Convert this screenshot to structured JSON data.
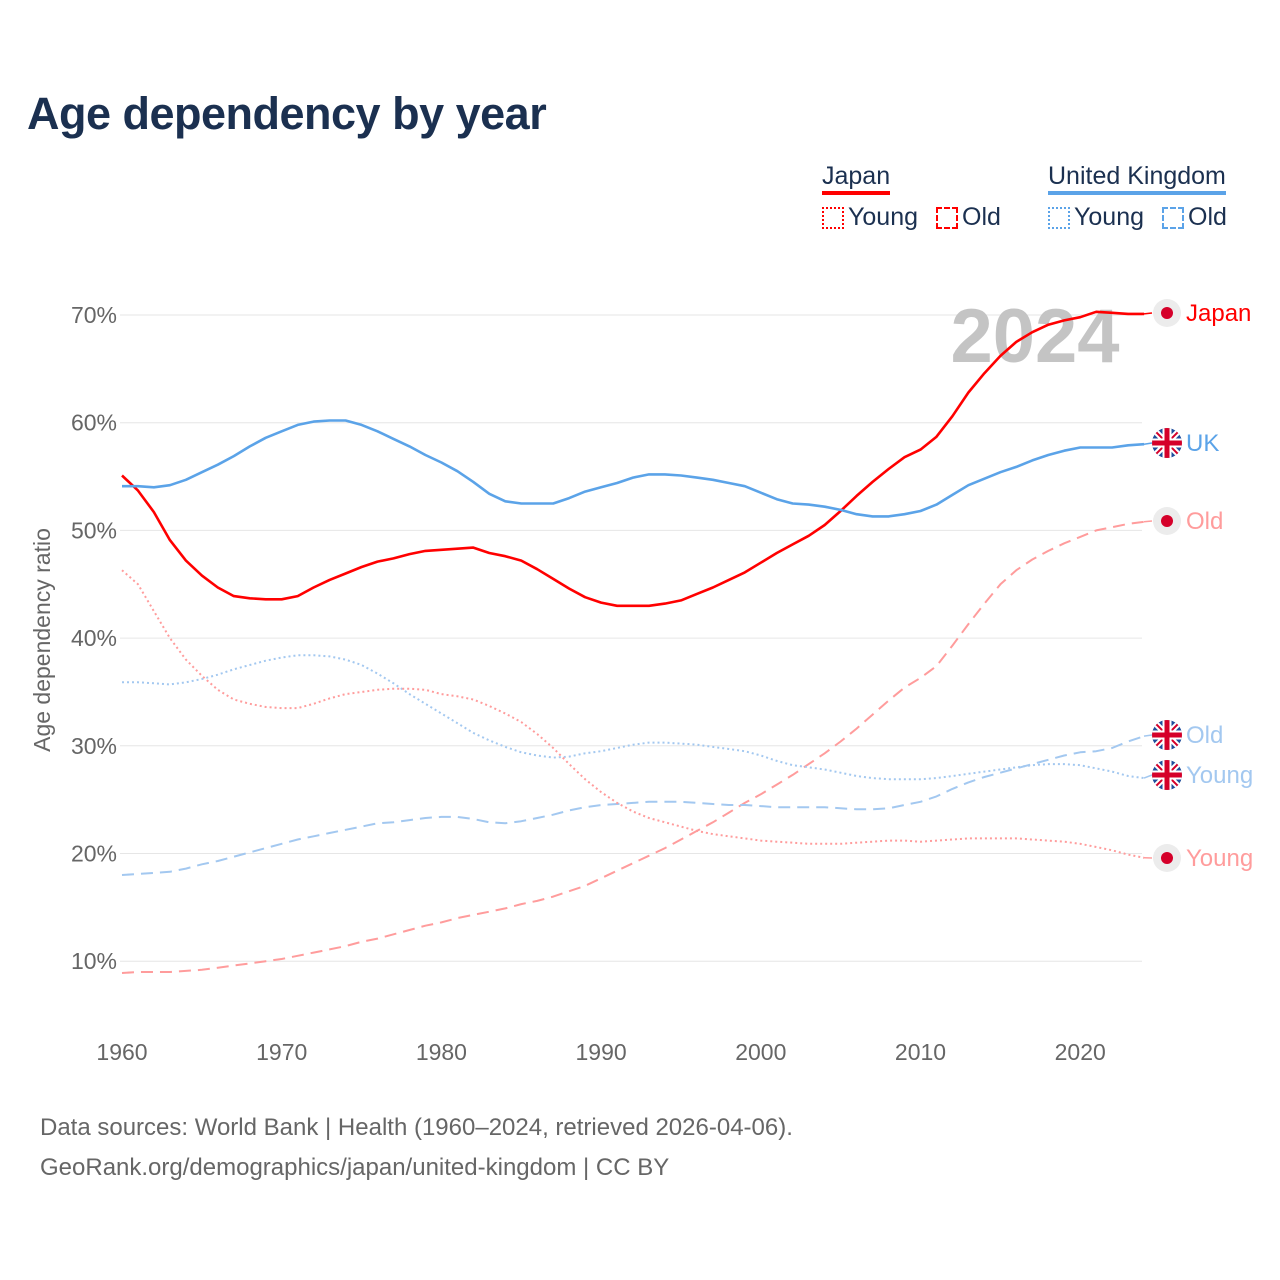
{
  "title": "Age dependency by year",
  "legend": {
    "groups": [
      {
        "country": "Japan",
        "color": "#ff0000",
        "items": [
          {
            "label": "Young",
            "style": "dotted"
          },
          {
            "label": "Old",
            "style": "dashed"
          }
        ]
      },
      {
        "country": "United Kingdom",
        "color": "#5ba3e8",
        "items": [
          {
            "label": "Young",
            "style": "dotted"
          },
          {
            "label": "Old",
            "style": "dashed"
          }
        ]
      }
    ]
  },
  "year_watermark": "2024",
  "footer": {
    "line1": "Data sources: World Bank | Health (1960–2024, retrieved 2026-04-06).",
    "line2": "GeoRank.org/demographics/japan/united-kingdom | CC BY"
  },
  "chart_data": {
    "type": "line",
    "title": "Age dependency by year",
    "xlabel": "",
    "ylabel": "Age dependency ratio",
    "xlim": [
      1960,
      2024
    ],
    "ylim": [
      5,
      72
    ],
    "grid": true,
    "x_ticks": [
      "1960",
      "1970",
      "1980",
      "1990",
      "2000",
      "2010",
      "2020"
    ],
    "y_ticks": [
      "10%",
      "20%",
      "30%",
      "40%",
      "50%",
      "60%",
      "70%"
    ],
    "x_start": 1960,
    "series": [
      {
        "name": "Japan",
        "end_label": "Japan",
        "flag": "japan",
        "color": "#ff0000",
        "dash": "solid",
        "values": [
          55.1,
          53.7,
          51.7,
          49.1,
          47.2,
          45.8,
          44.7,
          43.9,
          43.7,
          43.6,
          43.6,
          43.9,
          44.7,
          45.4,
          46.0,
          46.6,
          47.1,
          47.4,
          47.8,
          48.1,
          48.2,
          48.3,
          48.4,
          47.9,
          47.6,
          47.2,
          46.4,
          45.5,
          44.6,
          43.8,
          43.3,
          43.0,
          43.0,
          43.0,
          43.2,
          43.5,
          44.1,
          44.7,
          45.4,
          46.1,
          47.0,
          47.9,
          48.7,
          49.5,
          50.5,
          51.8,
          53.2,
          54.5,
          55.7,
          56.8,
          57.5,
          58.7,
          60.6,
          62.8,
          64.6,
          66.2,
          67.5,
          68.4,
          69.1,
          69.5,
          69.8,
          70.3,
          70.2,
          70.1,
          70.1
        ]
      },
      {
        "name": "United Kingdom",
        "end_label": "UK",
        "flag": "uk",
        "color": "#5ba3e8",
        "dash": "solid",
        "values": [
          54.1,
          54.1,
          54.0,
          54.2,
          54.7,
          55.4,
          56.1,
          56.9,
          57.8,
          58.6,
          59.2,
          59.8,
          60.1,
          60.2,
          60.2,
          59.8,
          59.2,
          58.5,
          57.8,
          57.0,
          56.3,
          55.5,
          54.5,
          53.4,
          52.7,
          52.5,
          52.5,
          52.5,
          53.0,
          53.6,
          54.0,
          54.4,
          54.9,
          55.2,
          55.2,
          55.1,
          54.9,
          54.7,
          54.4,
          54.1,
          53.5,
          52.9,
          52.5,
          52.4,
          52.2,
          51.9,
          51.5,
          51.3,
          51.3,
          51.5,
          51.8,
          52.4,
          53.3,
          54.2,
          54.8,
          55.4,
          55.9,
          56.5,
          57.0,
          57.4,
          57.7,
          57.7,
          57.7,
          57.9,
          58.0
        ]
      },
      {
        "name": "Japan Old",
        "end_label": "Old",
        "flag": "japan",
        "color": "#ff9c9c",
        "dash": "dashed",
        "values": [
          8.9,
          9.0,
          9.0,
          9.0,
          9.1,
          9.2,
          9.4,
          9.6,
          9.8,
          10.0,
          10.2,
          10.5,
          10.8,
          11.1,
          11.4,
          11.8,
          12.1,
          12.5,
          12.9,
          13.3,
          13.6,
          14.0,
          14.3,
          14.6,
          14.9,
          15.3,
          15.6,
          16.0,
          16.5,
          17.0,
          17.7,
          18.4,
          19.1,
          19.8,
          20.5,
          21.3,
          22.1,
          22.9,
          23.8,
          24.7,
          25.5,
          26.4,
          27.3,
          28.3,
          29.3,
          30.4,
          31.6,
          32.9,
          34.2,
          35.4,
          36.3,
          37.4,
          39.3,
          41.3,
          43.2,
          45.0,
          46.3,
          47.3,
          48.1,
          48.8,
          49.4,
          50.0,
          50.3,
          50.6,
          50.8
        ]
      },
      {
        "name": "United Kingdom Old",
        "end_label": "Old",
        "flag": "uk",
        "color": "#a3c8f0",
        "dash": "dashed",
        "values": [
          18.0,
          18.1,
          18.2,
          18.3,
          18.6,
          19.0,
          19.3,
          19.7,
          20.1,
          20.5,
          20.9,
          21.3,
          21.6,
          21.9,
          22.2,
          22.5,
          22.8,
          22.9,
          23.1,
          23.3,
          23.4,
          23.4,
          23.2,
          22.9,
          22.8,
          23.0,
          23.3,
          23.6,
          24.0,
          24.3,
          24.5,
          24.6,
          24.7,
          24.8,
          24.8,
          24.8,
          24.7,
          24.6,
          24.5,
          24.5,
          24.4,
          24.3,
          24.3,
          24.3,
          24.3,
          24.2,
          24.1,
          24.1,
          24.2,
          24.5,
          24.8,
          25.3,
          26.0,
          26.6,
          27.1,
          27.5,
          27.9,
          28.3,
          28.7,
          29.1,
          29.4,
          29.5,
          29.8,
          30.4,
          30.9
        ]
      },
      {
        "name": "United Kingdom Young",
        "end_label": "Young",
        "flag": "uk",
        "color": "#a3c8f0",
        "dash": "dotted",
        "values": [
          35.9,
          35.9,
          35.8,
          35.7,
          35.9,
          36.2,
          36.6,
          37.1,
          37.5,
          37.9,
          38.2,
          38.4,
          38.4,
          38.3,
          38.0,
          37.5,
          36.7,
          35.8,
          34.8,
          33.9,
          33.0,
          32.1,
          31.2,
          30.5,
          29.9,
          29.4,
          29.1,
          28.9,
          29.0,
          29.3,
          29.5,
          29.8,
          30.1,
          30.3,
          30.3,
          30.2,
          30.1,
          29.9,
          29.7,
          29.5,
          29.1,
          28.6,
          28.2,
          28.0,
          27.8,
          27.5,
          27.2,
          27.0,
          26.9,
          26.9,
          26.9,
          27.0,
          27.2,
          27.4,
          27.6,
          27.8,
          28.0,
          28.2,
          28.3,
          28.3,
          28.2,
          27.9,
          27.6,
          27.2,
          27.0
        ]
      },
      {
        "name": "Japan Young",
        "end_label": "Young",
        "flag": "japan",
        "color": "#ff9c9c",
        "dash": "dotted",
        "values": [
          46.3,
          45.0,
          42.5,
          40.0,
          38.0,
          36.5,
          35.2,
          34.3,
          33.9,
          33.6,
          33.5,
          33.5,
          33.9,
          34.4,
          34.8,
          35.0,
          35.2,
          35.3,
          35.3,
          35.2,
          34.8,
          34.6,
          34.3,
          33.7,
          33.0,
          32.2,
          31.1,
          29.8,
          28.3,
          26.9,
          25.7,
          24.7,
          23.9,
          23.3,
          22.9,
          22.5,
          22.1,
          21.8,
          21.6,
          21.4,
          21.2,
          21.1,
          21.0,
          20.9,
          20.9,
          20.9,
          21.0,
          21.1,
          21.2,
          21.2,
          21.1,
          21.2,
          21.3,
          21.4,
          21.4,
          21.4,
          21.4,
          21.3,
          21.2,
          21.1,
          20.9,
          20.6,
          20.3,
          19.9,
          19.6
        ]
      }
    ]
  }
}
